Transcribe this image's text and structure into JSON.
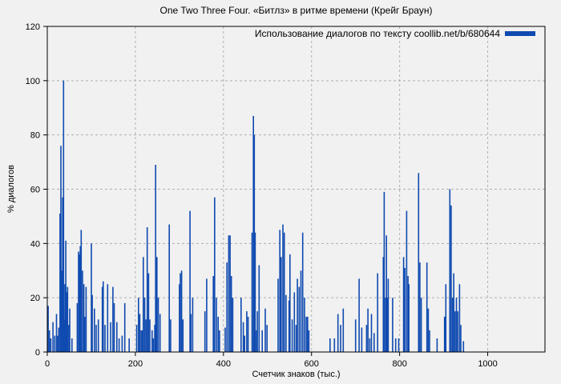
{
  "title": "One Two Three Four. «Битлз» в ритме времени (Крейг Браун)",
  "legend": {
    "label": "Использование диалогов по тексту coollib.net/b/680644",
    "swatch_color": "#0f4ab0"
  },
  "axes": {
    "x": {
      "label": "Счетчик знаков (тыс.)",
      "ticks": [
        0,
        200,
        400,
        600,
        800,
        1000
      ],
      "min": 0,
      "max": 1130
    },
    "y": {
      "label": "% диалогов",
      "ticks": [
        0,
        20,
        40,
        60,
        80,
        100,
        120
      ],
      "min": 0,
      "max": 120
    }
  },
  "colors": {
    "bar": "#0f4ab0",
    "grid": "#b0b0b0",
    "axis": "#000000",
    "background": "#f1f1f1"
  },
  "chart_data": {
    "type": "bar",
    "style": "impulses",
    "title": "One Two Three Four. «Битлз» в ритме времени (Крейг Браун)",
    "xlabel": "Счетчик знаков (тыс.)",
    "ylabel": "% диалогов",
    "xlim": [
      0,
      1130
    ],
    "ylim": [
      0,
      120
    ],
    "grid": true,
    "legend_position": "top-right",
    "series": [
      {
        "name": "Использование диалогов по тексту coollib.net/b/680644",
        "color": "#0f4ab0",
        "points": [
          [
            2,
            17
          ],
          [
            5,
            8
          ],
          [
            8,
            5
          ],
          [
            13,
            11
          ],
          [
            17,
            6
          ],
          [
            21,
            14
          ],
          [
            23,
            6
          ],
          [
            26,
            9
          ],
          [
            29,
            51
          ],
          [
            31,
            76
          ],
          [
            33,
            30
          ],
          [
            35,
            57
          ],
          [
            37,
            100
          ],
          [
            39,
            12
          ],
          [
            40,
            25
          ],
          [
            42,
            41
          ],
          [
            44,
            22
          ],
          [
            46,
            24
          ],
          [
            49,
            10
          ],
          [
            51,
            16
          ],
          [
            56,
            5
          ],
          [
            68,
            18
          ],
          [
            71,
            37
          ],
          [
            73,
            36
          ],
          [
            75,
            39
          ],
          [
            77,
            45
          ],
          [
            80,
            30
          ],
          [
            83,
            25
          ],
          [
            85,
            13
          ],
          [
            88,
            24
          ],
          [
            100,
            40
          ],
          [
            102,
            21
          ],
          [
            107,
            16
          ],
          [
            111,
            10
          ],
          [
            116,
            12
          ],
          [
            125,
            24
          ],
          [
            127,
            26
          ],
          [
            131,
            10
          ],
          [
            137,
            25
          ],
          [
            144,
            11
          ],
          [
            149,
            24
          ],
          [
            152,
            18
          ],
          [
            158,
            11
          ],
          [
            163,
            5
          ],
          [
            170,
            6
          ],
          [
            176,
            18
          ],
          [
            186,
            5
          ],
          [
            203,
            10
          ],
          [
            207,
            20
          ],
          [
            210,
            14
          ],
          [
            213,
            8
          ],
          [
            216,
            8
          ],
          [
            218,
            35
          ],
          [
            221,
            20
          ],
          [
            224,
            12
          ],
          [
            227,
            46
          ],
          [
            230,
            29
          ],
          [
            233,
            12
          ],
          [
            238,
            8
          ],
          [
            241,
            5
          ],
          [
            244,
            10
          ],
          [
            246,
            69
          ],
          [
            249,
            35
          ],
          [
            252,
            20
          ],
          [
            256,
            14
          ],
          [
            277,
            47
          ],
          [
            280,
            12
          ],
          [
            300,
            25
          ],
          [
            302,
            29
          ],
          [
            305,
            30
          ],
          [
            308,
            12
          ],
          [
            324,
            52
          ],
          [
            326,
            14
          ],
          [
            330,
            20
          ],
          [
            358,
            15
          ],
          [
            362,
            27
          ],
          [
            377,
            28
          ],
          [
            380,
            57
          ],
          [
            384,
            20
          ],
          [
            388,
            13
          ],
          [
            391,
            8
          ],
          [
            404,
            9
          ],
          [
            408,
            33
          ],
          [
            412,
            43
          ],
          [
            415,
            43
          ],
          [
            418,
            28
          ],
          [
            421,
            20
          ],
          [
            440,
            20
          ],
          [
            445,
            11
          ],
          [
            448,
            6
          ],
          [
            453,
            15
          ],
          [
            456,
            13
          ],
          [
            465,
            44
          ],
          [
            468,
            87
          ],
          [
            470,
            80
          ],
          [
            472,
            44
          ],
          [
            475,
            8
          ],
          [
            477,
            15
          ],
          [
            481,
            32
          ],
          [
            488,
            8
          ],
          [
            495,
            16
          ],
          [
            499,
            10
          ],
          [
            524,
            27
          ],
          [
            528,
            45
          ],
          [
            531,
            35
          ],
          [
            535,
            47
          ],
          [
            538,
            44
          ],
          [
            542,
            21
          ],
          [
            549,
            19
          ],
          [
            551,
            36
          ],
          [
            556,
            12
          ],
          [
            561,
            22
          ],
          [
            565,
            10
          ],
          [
            568,
            27
          ],
          [
            572,
            24
          ],
          [
            576,
            30
          ],
          [
            580,
            44
          ],
          [
            584,
            20
          ],
          [
            588,
            13
          ],
          [
            591,
            13
          ],
          [
            594,
            8
          ],
          [
            642,
            5
          ],
          [
            652,
            5
          ],
          [
            660,
            14
          ],
          [
            666,
            10
          ],
          [
            672,
            16
          ],
          [
            700,
            12
          ],
          [
            708,
            27
          ],
          [
            714,
            9
          ],
          [
            725,
            10
          ],
          [
            728,
            16
          ],
          [
            732,
            5
          ],
          [
            736,
            14
          ],
          [
            742,
            7
          ],
          [
            750,
            29
          ],
          [
            763,
            35
          ],
          [
            765,
            59
          ],
          [
            768,
            20
          ],
          [
            770,
            43
          ],
          [
            772,
            20
          ],
          [
            774,
            27
          ],
          [
            784,
            20
          ],
          [
            791,
            5
          ],
          [
            798,
            5
          ],
          [
            809,
            35
          ],
          [
            812,
            31
          ],
          [
            816,
            52
          ],
          [
            819,
            28
          ],
          [
            821,
            25
          ],
          [
            843,
            66
          ],
          [
            846,
            33
          ],
          [
            849,
            20
          ],
          [
            862,
            33
          ],
          [
            865,
            16
          ],
          [
            868,
            8
          ],
          [
            885,
            5
          ],
          [
            902,
            13
          ],
          [
            905,
            25
          ],
          [
            914,
            60
          ],
          [
            917,
            54
          ],
          [
            920,
            20
          ],
          [
            923,
            29
          ],
          [
            926,
            15
          ],
          [
            929,
            20
          ],
          [
            932,
            15
          ],
          [
            936,
            25
          ],
          [
            939,
            10
          ],
          [
            945,
            4
          ]
        ]
      }
    ]
  }
}
